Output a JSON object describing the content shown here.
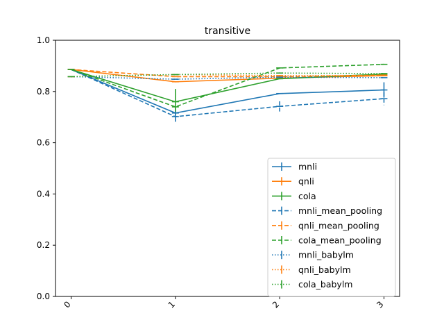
{
  "chart_data": {
    "type": "line",
    "title": "transitive",
    "xlabel": "",
    "ylabel": "",
    "x": [
      0,
      1,
      2,
      3
    ],
    "xticks": [
      "0",
      "1",
      "2",
      "3"
    ],
    "yticks": [
      "0.0",
      "0.2",
      "0.4",
      "0.6",
      "0.8",
      "1.0"
    ],
    "xlim": [
      -0.15,
      3.15
    ],
    "ylim": [
      0.0,
      1.0
    ],
    "grid": false,
    "legend_position": "lower right",
    "series": [
      {
        "name": "mnli",
        "color": "#1f77b4",
        "style": "solid",
        "values": [
          0.886,
          0.716,
          0.792,
          0.806
        ],
        "errors": [
          0.0,
          0.02,
          0.0,
          0.03
        ]
      },
      {
        "name": "qnli",
        "color": "#ff7f0e",
        "style": "solid",
        "values": [
          0.886,
          0.838,
          0.852,
          0.862
        ],
        "errors": [
          0.0,
          0.0,
          0.0,
          0.0
        ]
      },
      {
        "name": "cola",
        "color": "#2ca02c",
        "style": "solid",
        "values": [
          0.886,
          0.76,
          0.85,
          0.868
        ],
        "errors": [
          0.0,
          0.05,
          0.0,
          0.0
        ]
      },
      {
        "name": "mnli_mean_pooling",
        "color": "#1f77b4",
        "style": "dashed",
        "values": [
          0.886,
          0.702,
          0.742,
          0.772
        ],
        "errors": [
          0.0,
          0.02,
          0.02,
          0.025
        ]
      },
      {
        "name": "qnli_mean_pooling",
        "color": "#ff7f0e",
        "style": "dashed",
        "values": [
          0.886,
          0.858,
          0.858,
          0.864
        ],
        "errors": [
          0.0,
          0.0,
          0.0,
          0.0
        ]
      },
      {
        "name": "cola_mean_pooling",
        "color": "#2ca02c",
        "style": "dashed",
        "values": [
          0.886,
          0.74,
          0.892,
          0.906
        ],
        "errors": [
          0.0,
          0.0,
          0.0,
          0.0
        ]
      },
      {
        "name": "mnli_babylm",
        "color": "#1f77b4",
        "style": "dotted",
        "values": [
          0.858,
          0.848,
          0.856,
          0.854
        ],
        "errors": [
          0.0,
          0.0,
          0.0,
          0.0
        ]
      },
      {
        "name": "qnli_babylm",
        "color": "#ff7f0e",
        "style": "dotted",
        "values": [
          0.858,
          0.866,
          0.862,
          0.862
        ],
        "errors": [
          0.0,
          0.0,
          0.0,
          0.0
        ]
      },
      {
        "name": "cola_babylm",
        "color": "#2ca02c",
        "style": "dotted",
        "values": [
          0.858,
          0.866,
          0.872,
          0.87
        ],
        "errors": [
          0.0,
          0.0,
          0.0,
          0.0
        ]
      }
    ]
  }
}
